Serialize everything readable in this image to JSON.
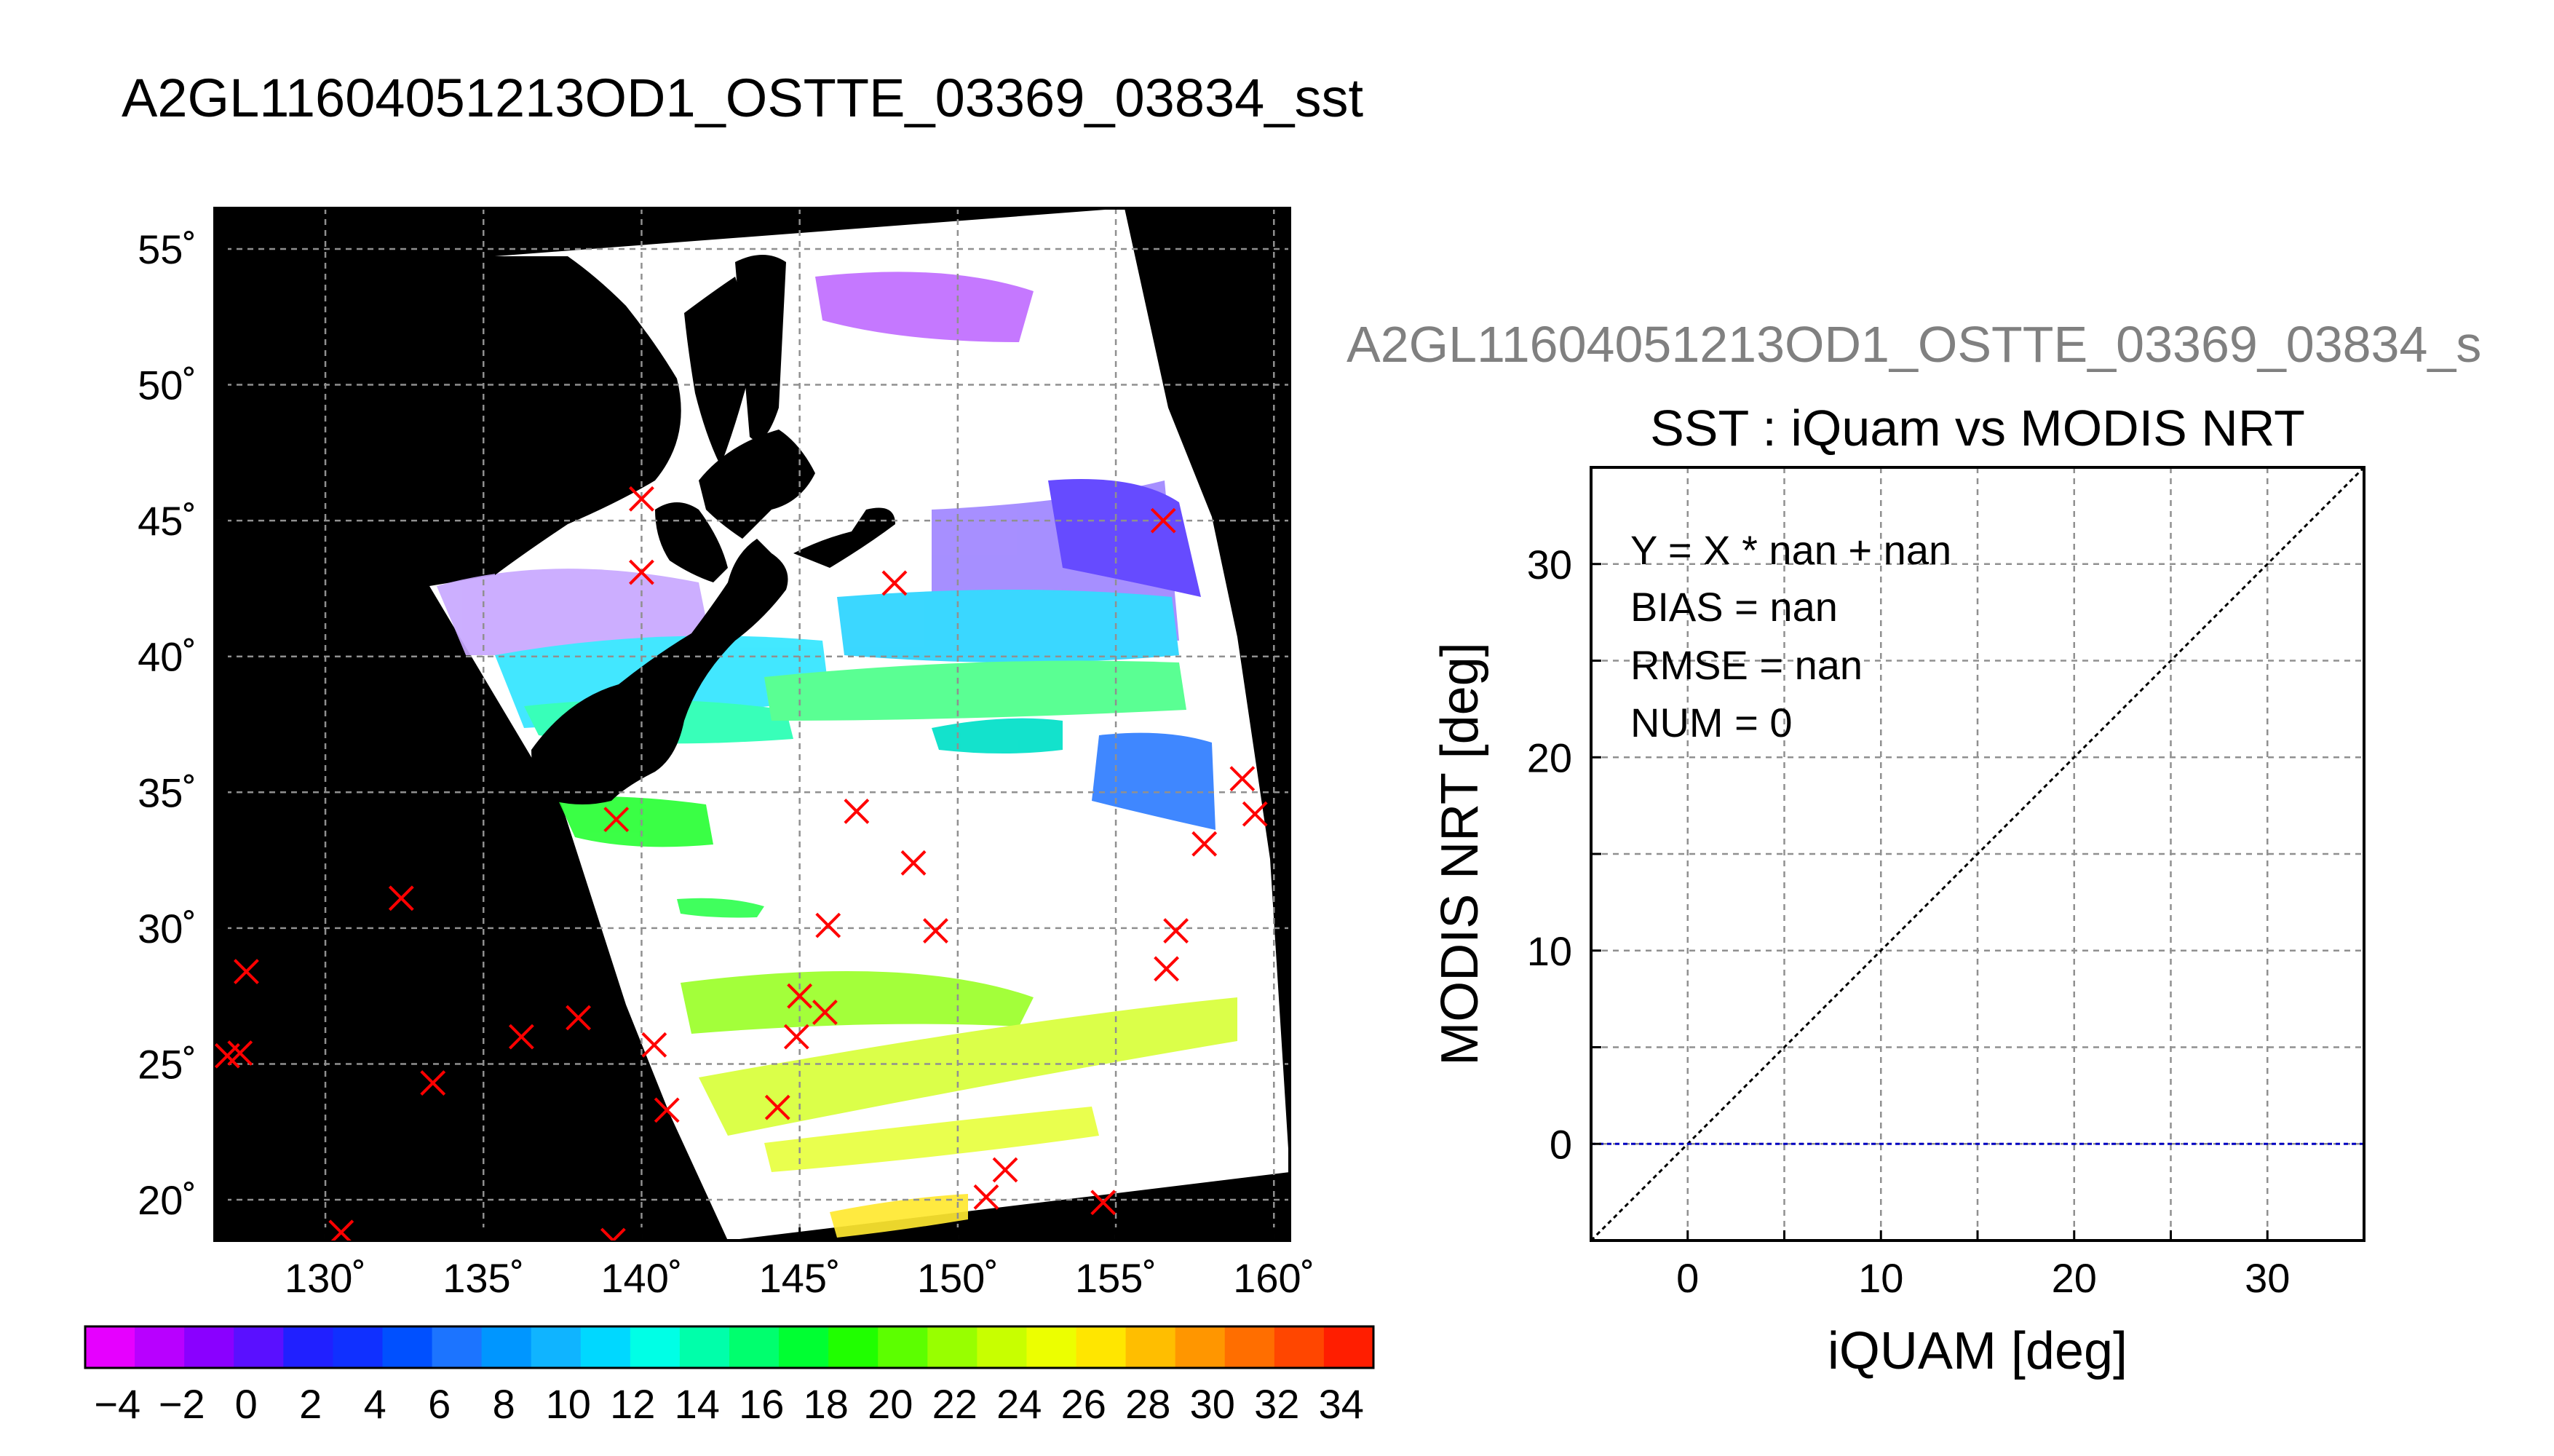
{
  "main_title": "A2GL11604051213OD1_OSTTE_03369_03834_sst",
  "chart_data": [
    {
      "type": "map-scatter",
      "title": "A2GL11604051213OD1_OSTTE_03369_03834_sst",
      "xlim": [
        126.5,
        160.5
      ],
      "ylim": [
        18.5,
        56.5
      ],
      "xticks": [
        130,
        135,
        140,
        145,
        150,
        155,
        160
      ],
      "yticks": [
        20,
        25,
        30,
        35,
        40,
        45,
        50,
        55
      ],
      "degree_symbol": "˚",
      "grid": true,
      "marker_color": "#ff0000",
      "markers": [
        [
          140.0,
          45.8
        ],
        [
          140.0,
          43.1
        ],
        [
          148.0,
          42.7
        ],
        [
          156.5,
          45.0
        ],
        [
          139.2,
          34.0
        ],
        [
          146.8,
          34.3
        ],
        [
          148.6,
          32.4
        ],
        [
          159.0,
          35.5
        ],
        [
          159.4,
          34.2
        ],
        [
          157.8,
          33.1
        ],
        [
          132.4,
          31.1
        ],
        [
          127.5,
          28.4
        ],
        [
          145.9,
          30.1
        ],
        [
          149.3,
          29.9
        ],
        [
          156.9,
          29.9
        ],
        [
          156.6,
          28.5
        ],
        [
          145.0,
          27.5
        ],
        [
          145.8,
          26.9
        ],
        [
          144.9,
          26.0
        ],
        [
          138.0,
          26.7
        ],
        [
          136.2,
          26.0
        ],
        [
          140.4,
          25.7
        ],
        [
          126.9,
          25.3
        ],
        [
          127.3,
          25.4
        ],
        [
          133.4,
          24.3
        ],
        [
          140.8,
          23.3
        ],
        [
          144.3,
          23.4
        ],
        [
          151.5,
          21.1
        ],
        [
          150.9,
          20.1
        ],
        [
          154.6,
          19.9
        ],
        [
          130.5,
          18.8
        ],
        [
          139.1,
          18.5
        ]
      ]
    },
    {
      "type": "scatter",
      "title": "SST : iQuam vs MODIS NRT",
      "subtitle": "A2GL11604051213OD1_OSTTE_03369_03834_s",
      "xlabel": "iQUAM [deg]",
      "ylabel": "MODIS NRT [deg]",
      "xlim": [
        -5,
        35
      ],
      "ylim": [
        -5,
        35
      ],
      "xticks": [
        0,
        10,
        20,
        30
      ],
      "yticks": [
        0,
        10,
        20,
        30
      ],
      "grid_step": 5,
      "grid": true,
      "one_to_one_line": [
        [
          -5,
          -5
        ],
        [
          35,
          35
        ]
      ],
      "zero_line": {
        "y": 0,
        "color": "#0000c0"
      },
      "stats": [
        "Y = X * nan + nan",
        "BIAS = nan",
        "RMSE = nan",
        "NUM = 0"
      ],
      "points": []
    }
  ],
  "colorbar": {
    "range": [
      -5,
      35
    ],
    "tick_labels": [
      "−4",
      "−2",
      "0",
      "2",
      "4",
      "6",
      "8",
      "10",
      "12",
      "14",
      "16",
      "18",
      "20",
      "22",
      "24",
      "26",
      "28",
      "30",
      "32",
      "34"
    ],
    "tick_values": [
      -4,
      -2,
      0,
      2,
      4,
      6,
      8,
      10,
      12,
      14,
      16,
      18,
      20,
      22,
      24,
      26,
      28,
      30,
      32,
      34
    ],
    "colors": [
      "#e600ff",
      "#b800ff",
      "#8a00ff",
      "#5a10ff",
      "#2020ff",
      "#1030ff",
      "#0050ff",
      "#1c74ff",
      "#0096ff",
      "#10b4ff",
      "#00d8ff",
      "#00ffe6",
      "#00ffaa",
      "#00ff6e",
      "#00ff32",
      "#20ff00",
      "#5cff00",
      "#98ff00",
      "#c8ff00",
      "#ecff00",
      "#ffe600",
      "#ffbe00",
      "#ff9600",
      "#ff6e00",
      "#ff4600",
      "#ff1e00"
    ]
  }
}
